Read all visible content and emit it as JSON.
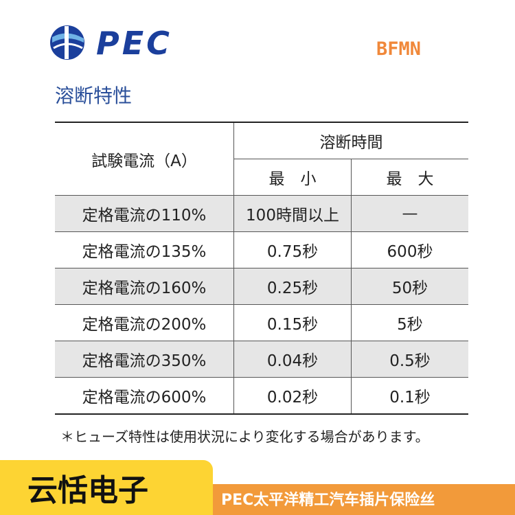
{
  "header": {
    "logo": "PEC",
    "model": "BFMN"
  },
  "section_title": "溶断特性",
  "table": {
    "columns": {
      "current": "試験電流（A）",
      "time": "溶断時間",
      "min": "最　小",
      "max": "最　大"
    },
    "rows": [
      [
        "定格電流の110%",
        "100時間以上",
        "—"
      ],
      [
        "定格電流の135%",
        "0.75秒",
        "600秒"
      ],
      [
        "定格電流の160%",
        "0.25秒",
        "50秒"
      ],
      [
        "定格電流の200%",
        "0.15秒",
        "5秒"
      ],
      [
        "定格電流の350%",
        "0.04秒",
        "0.5秒"
      ],
      [
        "定格電流の600%",
        "0.02秒",
        "0.1秒"
      ]
    ]
  },
  "note": "＊ヒューズ特性は使用状況により変化する場合があります。",
  "footer": {
    "brand": "云恬电子",
    "product": "PEC太平洋精工汽车插片保险丝"
  }
}
